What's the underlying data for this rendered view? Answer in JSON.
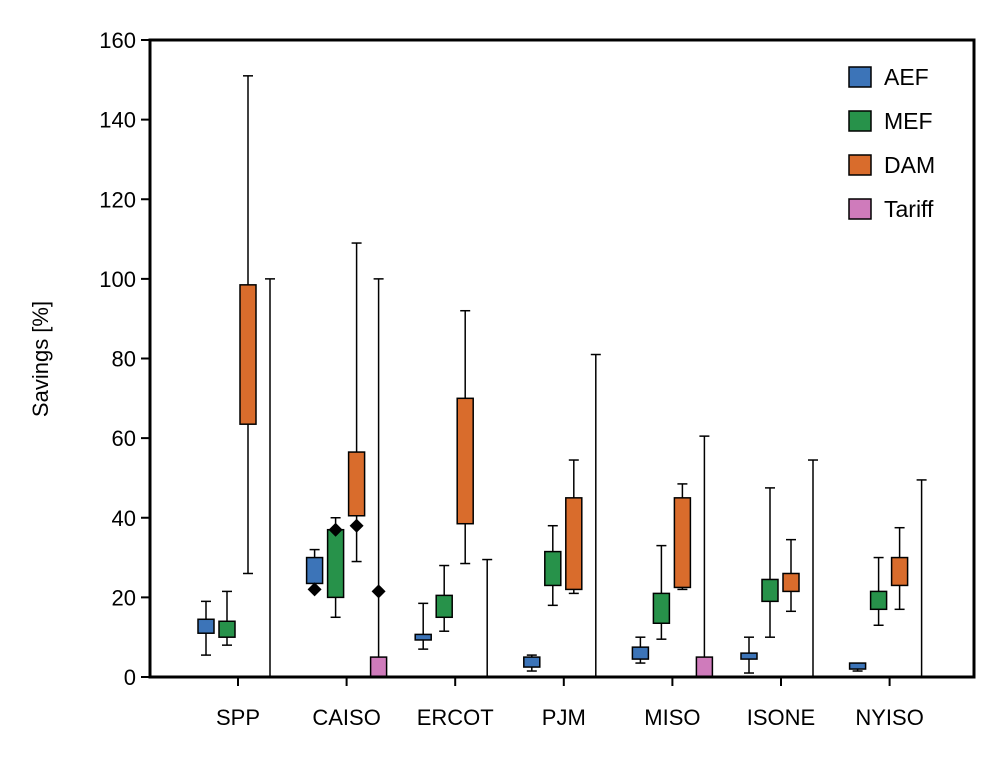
{
  "chart_data": {
    "type": "box",
    "ylabel": "Savings [%]",
    "xlabel": "",
    "ylim": [
      0,
      160
    ],
    "yticks": [
      0,
      20,
      40,
      60,
      80,
      100,
      120,
      140,
      160
    ],
    "grid": false,
    "legend_position": "top-right",
    "categories": [
      "SPP",
      "CAISO",
      "ERCOT",
      "PJM",
      "MISO",
      "ISONE",
      "NYISO"
    ],
    "series": [
      {
        "name": "AEF",
        "color": "#3c74b8",
        "boxes": [
          {
            "category": "SPP",
            "whisker_low": 5.5,
            "q1": 11,
            "q3": 14.5,
            "whisker_high": 19,
            "outliers": []
          },
          {
            "category": "CAISO",
            "whisker_low": 22,
            "q1": 23.5,
            "q3": 30,
            "whisker_high": 32,
            "outliers": [
              22
            ]
          },
          {
            "category": "ERCOT",
            "whisker_low": 7,
            "q1": 9.3,
            "q3": 10.7,
            "whisker_high": 18.5,
            "outliers": []
          },
          {
            "category": "PJM",
            "whisker_low": 1.5,
            "q1": 2.5,
            "q3": 5,
            "whisker_high": 5.5,
            "outliers": []
          },
          {
            "category": "MISO",
            "whisker_low": 3.5,
            "q1": 4.5,
            "q3": 7.5,
            "whisker_high": 10,
            "outliers": []
          },
          {
            "category": "ISONE",
            "whisker_low": 1,
            "q1": 4.5,
            "q3": 6,
            "whisker_high": 10,
            "outliers": []
          },
          {
            "category": "NYISO",
            "whisker_low": 1.5,
            "q1": 2,
            "q3": 3.5,
            "whisker_high": 3.5,
            "outliers": []
          }
        ]
      },
      {
        "name": "MEF",
        "color": "#27924a",
        "boxes": [
          {
            "category": "SPP",
            "whisker_low": 8,
            "q1": 10,
            "q3": 14,
            "whisker_high": 21.5,
            "outliers": []
          },
          {
            "category": "CAISO",
            "whisker_low": 15,
            "q1": 20,
            "q3": 37,
            "whisker_high": 40,
            "outliers": [
              37
            ]
          },
          {
            "category": "ERCOT",
            "whisker_low": 11.5,
            "q1": 15,
            "q3": 20.5,
            "whisker_high": 28,
            "outliers": []
          },
          {
            "category": "PJM",
            "whisker_low": 18,
            "q1": 23,
            "q3": 31.5,
            "whisker_high": 38,
            "outliers": []
          },
          {
            "category": "MISO",
            "whisker_low": 9.5,
            "q1": 13.5,
            "q3": 21,
            "whisker_high": 33,
            "outliers": []
          },
          {
            "category": "ISONE",
            "whisker_low": 10,
            "q1": 19,
            "q3": 24.5,
            "whisker_high": 47.5,
            "outliers": []
          },
          {
            "category": "NYISO",
            "whisker_low": 13,
            "q1": 17,
            "q3": 21.5,
            "whisker_high": 30,
            "outliers": []
          }
        ]
      },
      {
        "name": "DAM",
        "color": "#d96c2c",
        "boxes": [
          {
            "category": "SPP",
            "whisker_low": 26,
            "q1": 63.5,
            "q3": 98.5,
            "whisker_high": 151,
            "outliers": []
          },
          {
            "category": "CAISO",
            "whisker_low": 29,
            "q1": 40.5,
            "q3": 56.5,
            "whisker_high": 109,
            "outliers": [
              38
            ]
          },
          {
            "category": "ERCOT",
            "whisker_low": 28.5,
            "q1": 38.5,
            "q3": 70,
            "whisker_high": 92,
            "outliers": []
          },
          {
            "category": "PJM",
            "whisker_low": 21,
            "q1": 22,
            "q3": 45,
            "whisker_high": 54.5,
            "outliers": []
          },
          {
            "category": "MISO",
            "whisker_low": 22,
            "q1": 22.5,
            "q3": 45,
            "whisker_high": 48.5,
            "outliers": []
          },
          {
            "category": "ISONE",
            "whisker_low": 16.5,
            "q1": 21.5,
            "q3": 26,
            "whisker_high": 34.5,
            "outliers": []
          },
          {
            "category": "NYISO",
            "whisker_low": 17,
            "q1": 23,
            "q3": 30,
            "whisker_high": 37.5,
            "outliers": []
          }
        ]
      },
      {
        "name": "Tariff",
        "color": "#cf7bbb",
        "boxes": [
          {
            "category": "SPP",
            "whisker_low": 0,
            "q1": 0,
            "q3": 0,
            "whisker_high": 100,
            "outliers": []
          },
          {
            "category": "CAISO",
            "whisker_low": 0,
            "q1": 0,
            "q3": 5,
            "whisker_high": 100,
            "outliers": [
              21.5
            ]
          },
          {
            "category": "ERCOT",
            "whisker_low": 0,
            "q1": 0,
            "q3": 0,
            "whisker_high": 29.5,
            "outliers": []
          },
          {
            "category": "PJM",
            "whisker_low": 0,
            "q1": 0,
            "q3": 0,
            "whisker_high": 81,
            "outliers": []
          },
          {
            "category": "MISO",
            "whisker_low": 0,
            "q1": 0,
            "q3": 5,
            "whisker_high": 60.5,
            "outliers": []
          },
          {
            "category": "ISONE",
            "whisker_low": 0,
            "q1": 0,
            "q3": 0,
            "whisker_high": 54.5,
            "outliers": []
          },
          {
            "category": "NYISO",
            "whisker_low": 0,
            "q1": 0,
            "q3": 0,
            "whisker_high": 49.5,
            "outliers": []
          }
        ]
      }
    ]
  }
}
